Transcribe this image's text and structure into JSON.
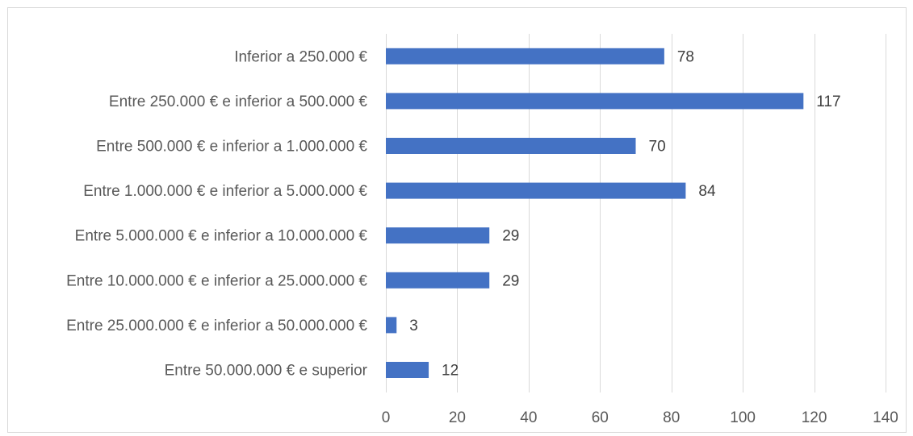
{
  "chart_data": {
    "type": "bar",
    "orientation": "horizontal",
    "categories": [
      "Inferior a 250.000 €",
      "Entre 250.000 € e inferior a 500.000 €",
      "Entre 500.000 € e inferior a 1.000.000 €",
      "Entre 1.000.000 € e inferior a 5.000.000 €",
      "Entre 5.000.000 € e inferior a 10.000.000 €",
      "Entre 10.000.000 € e inferior a 25.000.000 €",
      "Entre 25.000.000 € e inferior a 50.000.000 €",
      "Entre 50.000.000 € e superior"
    ],
    "values": [
      78,
      117,
      70,
      84,
      29,
      29,
      3,
      12
    ],
    "title": "",
    "xlabel": "",
    "ylabel": "",
    "xlim": [
      0,
      140
    ],
    "xticks": [
      0,
      20,
      40,
      60,
      80,
      100,
      120,
      140
    ],
    "grid": "vertical",
    "legend": "none",
    "data_labels": true,
    "bar_color": "#4472c4",
    "grid_color": "#d9d9d9",
    "text_color": "#595959"
  }
}
